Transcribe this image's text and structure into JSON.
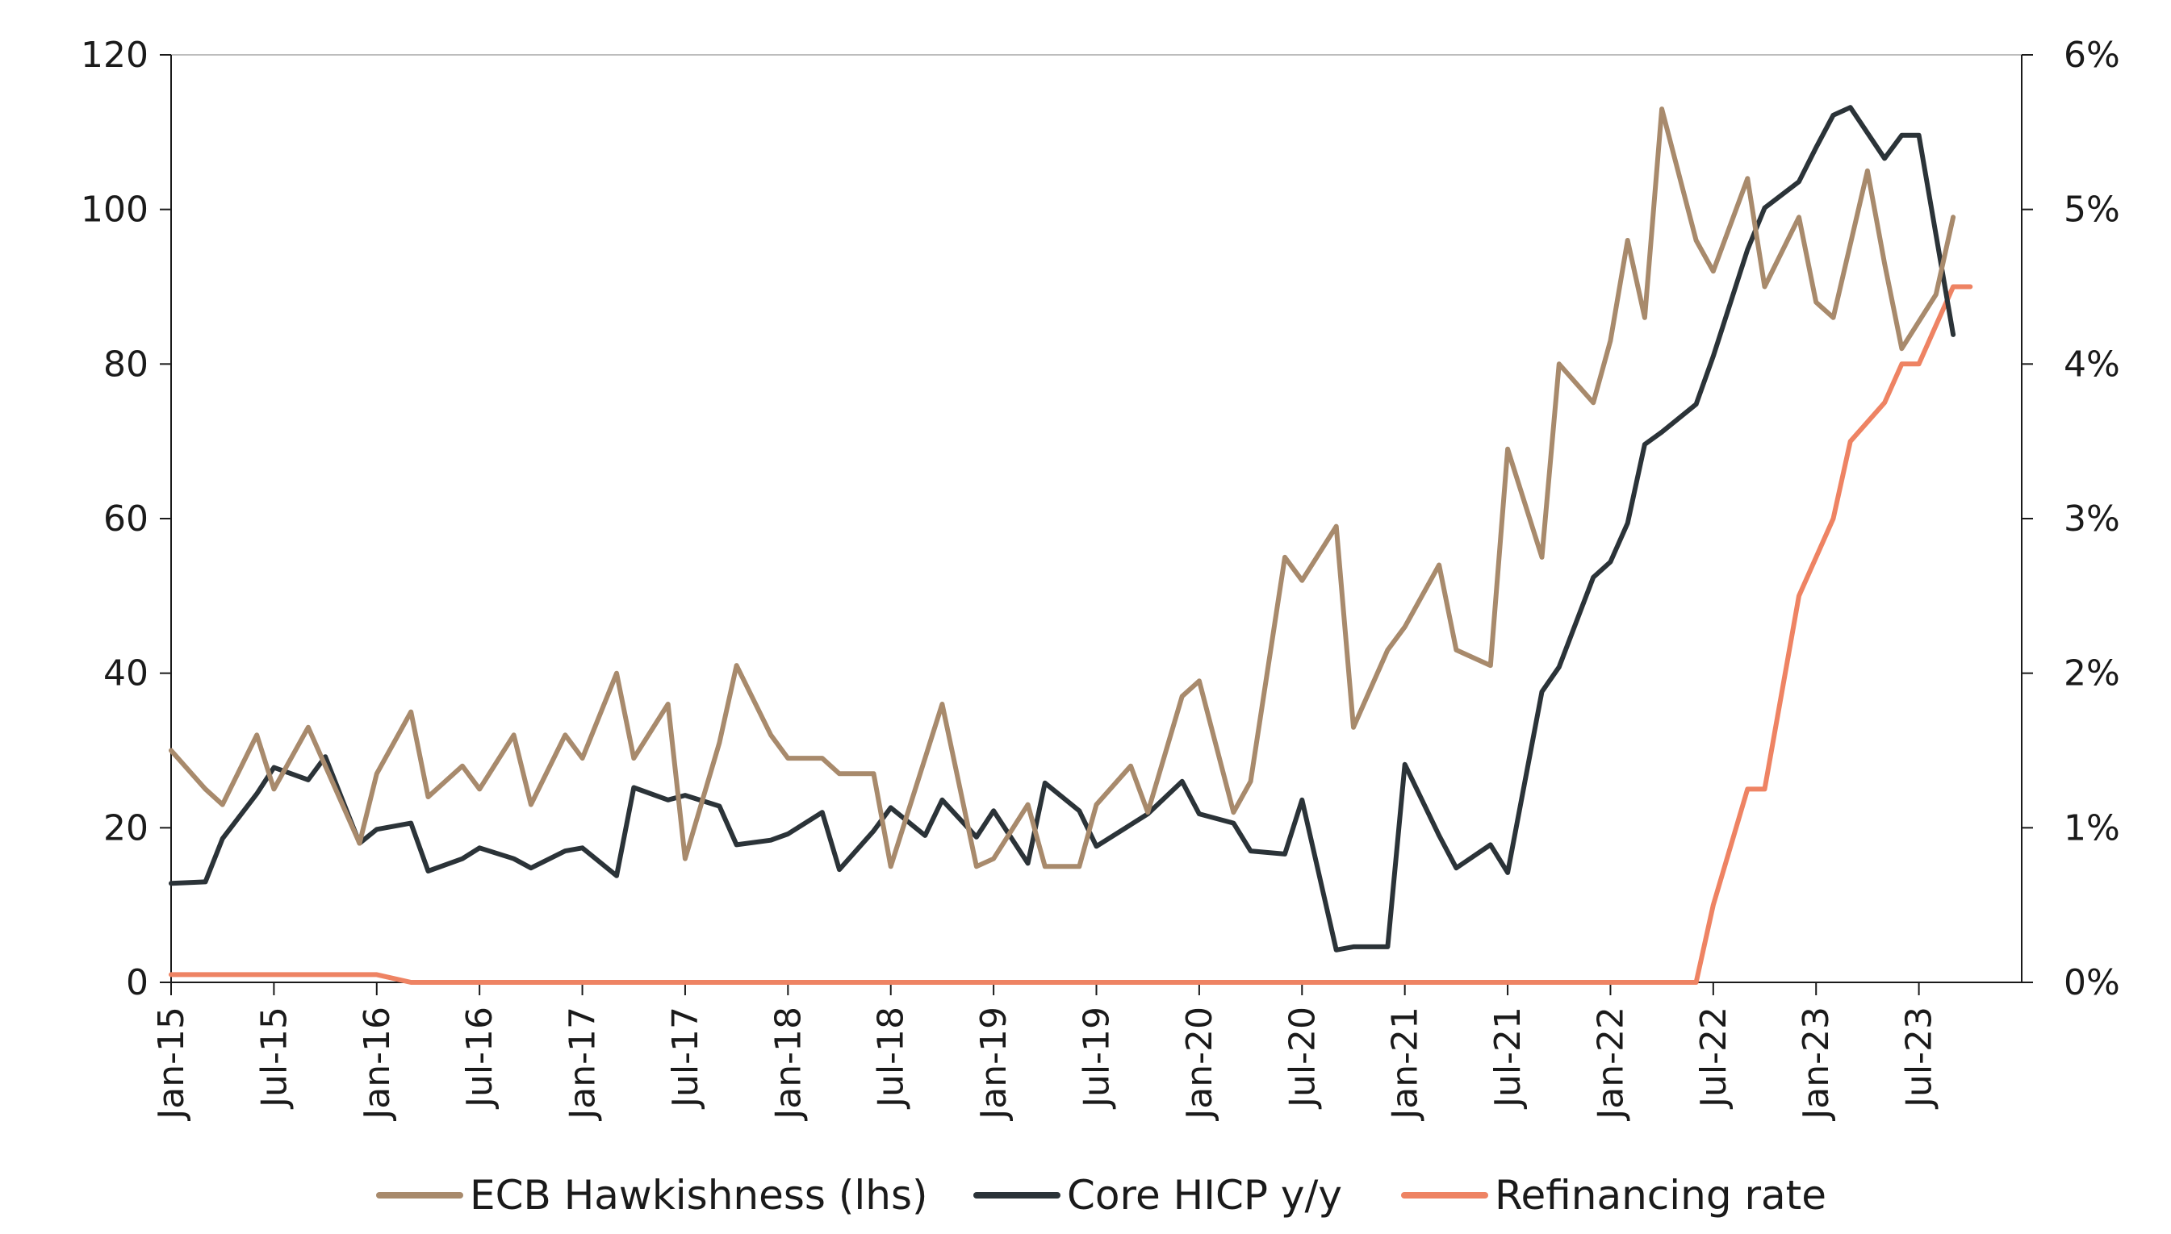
{
  "chart_data": {
    "type": "line",
    "title": "",
    "xlabel": "",
    "ylabel": "",
    "ylim": [
      0,
      120
    ],
    "y2lim": [
      0,
      0.06
    ],
    "grid": false,
    "legend_position": "bottom",
    "y_ticks": [
      "0",
      "20",
      "40",
      "60",
      "80",
      "100",
      "120"
    ],
    "y2_ticks": [
      "0%",
      "1%",
      "2%",
      "3%",
      "4%",
      "5%",
      "6%"
    ],
    "x_ticks": [
      "Jan-15",
      "Jul-15",
      "Jan-16",
      "Jul-16",
      "Jan-17",
      "Jul-17",
      "Jan-18",
      "Jul-18",
      "Jan-19",
      "Jul-19",
      "Jan-20",
      "Jul-20",
      "Jan-21",
      "Jul-21",
      "Jan-22",
      "Jul-22",
      "Jan-23",
      "Jul-23"
    ],
    "series": [
      {
        "name": "ECB Hawkishness (lhs)",
        "axis": "left",
        "color": "#a88a6c",
        "points": [
          [
            "2015-01",
            30
          ],
          [
            "2015-03",
            25
          ],
          [
            "2015-04",
            23
          ],
          [
            "2015-06",
            32
          ],
          [
            "2015-07",
            25
          ],
          [
            "2015-09",
            33
          ],
          [
            "2015-10",
            28
          ],
          [
            "2015-12",
            18
          ],
          [
            "2016-01",
            27
          ],
          [
            "2016-03",
            35
          ],
          [
            "2016-04",
            24
          ],
          [
            "2016-06",
            28
          ],
          [
            "2016-07",
            25
          ],
          [
            "2016-09",
            32
          ],
          [
            "2016-10",
            23
          ],
          [
            "2016-12",
            32
          ],
          [
            "2017-01",
            29
          ],
          [
            "2017-03",
            40
          ],
          [
            "2017-04",
            29
          ],
          [
            "2017-06",
            36
          ],
          [
            "2017-07",
            16
          ],
          [
            "2017-09",
            31
          ],
          [
            "2017-10",
            41
          ],
          [
            "2017-12",
            32
          ],
          [
            "2018-01",
            29
          ],
          [
            "2018-03",
            29
          ],
          [
            "2018-04",
            27
          ],
          [
            "2018-06",
            27
          ],
          [
            "2018-07",
            15
          ],
          [
            "2018-09",
            29
          ],
          [
            "2018-10",
            36
          ],
          [
            "2018-12",
            15
          ],
          [
            "2019-01",
            16
          ],
          [
            "2019-03",
            23
          ],
          [
            "2019-04",
            15
          ],
          [
            "2019-06",
            15
          ],
          [
            "2019-07",
            23
          ],
          [
            "2019-09",
            28
          ],
          [
            "2019-10",
            22
          ],
          [
            "2019-12",
            37
          ],
          [
            "2020-01",
            39
          ],
          [
            "2020-03",
            22
          ],
          [
            "2020-04",
            26
          ],
          [
            "2020-06",
            55
          ],
          [
            "2020-07",
            52
          ],
          [
            "2020-09",
            59
          ],
          [
            "2020-10",
            33
          ],
          [
            "2020-12",
            43
          ],
          [
            "2021-01",
            46
          ],
          [
            "2021-03",
            54
          ],
          [
            "2021-04",
            43
          ],
          [
            "2021-06",
            41
          ],
          [
            "2021-07",
            69
          ],
          [
            "2021-09",
            55
          ],
          [
            "2021-10",
            80
          ],
          [
            "2021-12",
            75
          ],
          [
            "2022-01",
            83
          ],
          [
            "2022-02",
            96
          ],
          [
            "2022-03",
            86
          ],
          [
            "2022-04",
            113
          ],
          [
            "2022-06",
            96
          ],
          [
            "2022-07",
            92
          ],
          [
            "2022-09",
            104
          ],
          [
            "2022-10",
            90
          ],
          [
            "2022-12",
            99
          ],
          [
            "2023-01",
            88
          ],
          [
            "2023-02",
            86
          ],
          [
            "2023-04",
            105
          ],
          [
            "2023-05",
            93
          ],
          [
            "2023-06",
            82
          ],
          [
            "2023-08",
            89
          ],
          [
            "2023-09",
            99
          ]
        ]
      },
      {
        "name": "Core HICP y/y",
        "axis": "right",
        "color": "#2b3338",
        "points": [
          [
            "2015-01",
            0.0064
          ],
          [
            "2015-03",
            0.0065
          ],
          [
            "2015-04",
            0.0093
          ],
          [
            "2015-06",
            0.0122
          ],
          [
            "2015-07",
            0.0139
          ],
          [
            "2015-09",
            0.0131
          ],
          [
            "2015-10",
            0.0146
          ],
          [
            "2015-12",
            0.009
          ],
          [
            "2016-01",
            0.0099
          ],
          [
            "2016-03",
            0.0103
          ],
          [
            "2016-04",
            0.0072
          ],
          [
            "2016-06",
            0.008
          ],
          [
            "2016-07",
            0.0087
          ],
          [
            "2016-09",
            0.008
          ],
          [
            "2016-10",
            0.0074
          ],
          [
            "2016-12",
            0.0085
          ],
          [
            "2017-01",
            0.0087
          ],
          [
            "2017-03",
            0.0069
          ],
          [
            "2017-04",
            0.0126
          ],
          [
            "2017-06",
            0.0118
          ],
          [
            "2017-07",
            0.0121
          ],
          [
            "2017-09",
            0.0114
          ],
          [
            "2017-10",
            0.0089
          ],
          [
            "2017-12",
            0.0092
          ],
          [
            "2018-01",
            0.0096
          ],
          [
            "2018-03",
            0.011
          ],
          [
            "2018-04",
            0.0073
          ],
          [
            "2018-06",
            0.0098
          ],
          [
            "2018-07",
            0.0113
          ],
          [
            "2018-09",
            0.0095
          ],
          [
            "2018-10",
            0.0118
          ],
          [
            "2018-12",
            0.0094
          ],
          [
            "2019-01",
            0.0111
          ],
          [
            "2019-03",
            0.0077
          ],
          [
            "2019-04",
            0.0129
          ],
          [
            "2019-06",
            0.0111
          ],
          [
            "2019-07",
            0.0088
          ],
          [
            "2019-09",
            0.0102
          ],
          [
            "2019-10",
            0.0109
          ],
          [
            "2019-12",
            0.013
          ],
          [
            "2020-01",
            0.0109
          ],
          [
            "2020-03",
            0.0103
          ],
          [
            "2020-04",
            0.0085
          ],
          [
            "2020-06",
            0.0083
          ],
          [
            "2020-07",
            0.0118
          ],
          [
            "2020-09",
            0.0021
          ],
          [
            "2020-10",
            0.0023
          ],
          [
            "2020-12",
            0.0023
          ],
          [
            "2021-01",
            0.0141
          ],
          [
            "2021-03",
            0.0095
          ],
          [
            "2021-04",
            0.0074
          ],
          [
            "2021-06",
            0.0089
          ],
          [
            "2021-07",
            0.0071
          ],
          [
            "2021-09",
            0.0188
          ],
          [
            "2021-10",
            0.0204
          ],
          [
            "2021-12",
            0.0262
          ],
          [
            "2022-01",
            0.0272
          ],
          [
            "2022-02",
            0.0297
          ],
          [
            "2022-03",
            0.0348
          ],
          [
            "2022-04",
            0.0356
          ],
          [
            "2022-06",
            0.0374
          ],
          [
            "2022-07",
            0.0405
          ],
          [
            "2022-09",
            0.0474
          ],
          [
            "2022-10",
            0.0501
          ],
          [
            "2022-12",
            0.0518
          ],
          [
            "2023-01",
            0.054
          ],
          [
            "2023-02",
            0.0561
          ],
          [
            "2023-03",
            0.0566
          ],
          [
            "2023-05",
            0.0533
          ],
          [
            "2023-06",
            0.0548
          ],
          [
            "2023-07",
            0.0548
          ],
          [
            "2023-09",
            0.0419
          ]
        ]
      },
      {
        "name": "Refinancing rate",
        "axis": "right",
        "color": "#ee8363",
        "points": [
          [
            "2015-01",
            0.0005
          ],
          [
            "2016-01",
            0.0005
          ],
          [
            "2016-03",
            0.0
          ],
          [
            "2022-06",
            0.0
          ],
          [
            "2022-07",
            0.005
          ],
          [
            "2022-09",
            0.0125
          ],
          [
            "2022-10",
            0.0125
          ],
          [
            "2022-12",
            0.025
          ],
          [
            "2023-02",
            0.03
          ],
          [
            "2023-03",
            0.035
          ],
          [
            "2023-05",
            0.0375
          ],
          [
            "2023-06",
            0.04
          ],
          [
            "2023-07",
            0.04
          ],
          [
            "2023-08",
            0.0425
          ],
          [
            "2023-09",
            0.045
          ],
          [
            "2023-10",
            0.045
          ]
        ]
      }
    ]
  }
}
